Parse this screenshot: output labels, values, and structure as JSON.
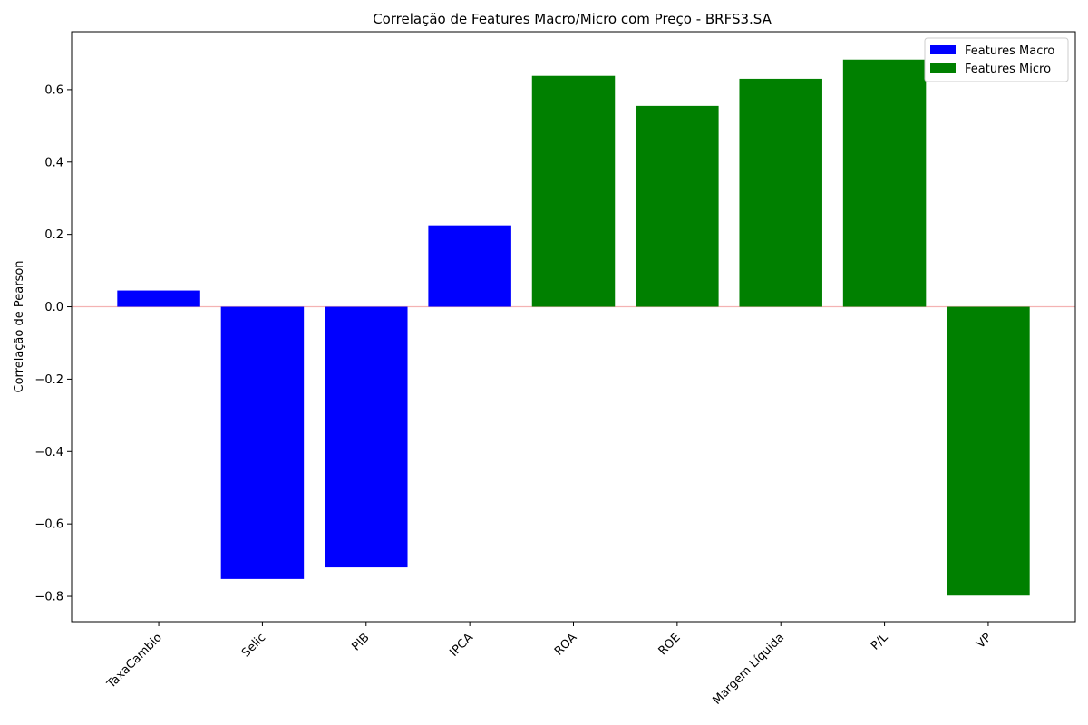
{
  "chart_data": {
    "type": "bar",
    "title": "Correlação de Features Macro/Micro com Preço - BRFS3.SA",
    "xlabel": "",
    "ylabel": "Correlação de Pearson",
    "categories": [
      "TaxaCambio",
      "Selic",
      "PIB",
      "IPCA",
      "ROA",
      "ROE",
      "Margem Líquida",
      "P/L",
      "VP"
    ],
    "values": [
      0.045,
      -0.752,
      -0.72,
      0.225,
      0.638,
      0.555,
      0.63,
      0.683,
      -0.798
    ],
    "groups": [
      "macro",
      "macro",
      "macro",
      "macro",
      "micro",
      "micro",
      "micro",
      "micro",
      "micro"
    ],
    "ylim": [
      -0.87,
      0.76
    ],
    "yticks": [
      -0.8,
      -0.6,
      -0.4,
      -0.2,
      0.0,
      0.2,
      0.4,
      0.6
    ],
    "ytick_labels": [
      "−0.8",
      "−0.6",
      "−0.4",
      "−0.2",
      "0.0",
      "0.2",
      "0.4",
      "0.6"
    ],
    "x_tick_rotation": -45,
    "grid": false,
    "zero_line": true,
    "zero_line_color": "#f4b3b3",
    "legend": {
      "position": "top-right",
      "entries": [
        {
          "label": "Features Macro",
          "color": "#0000ff"
        },
        {
          "label": "Features Micro",
          "color": "#008000"
        }
      ]
    },
    "colors": {
      "macro": "#0000ff",
      "micro": "#008000"
    }
  }
}
